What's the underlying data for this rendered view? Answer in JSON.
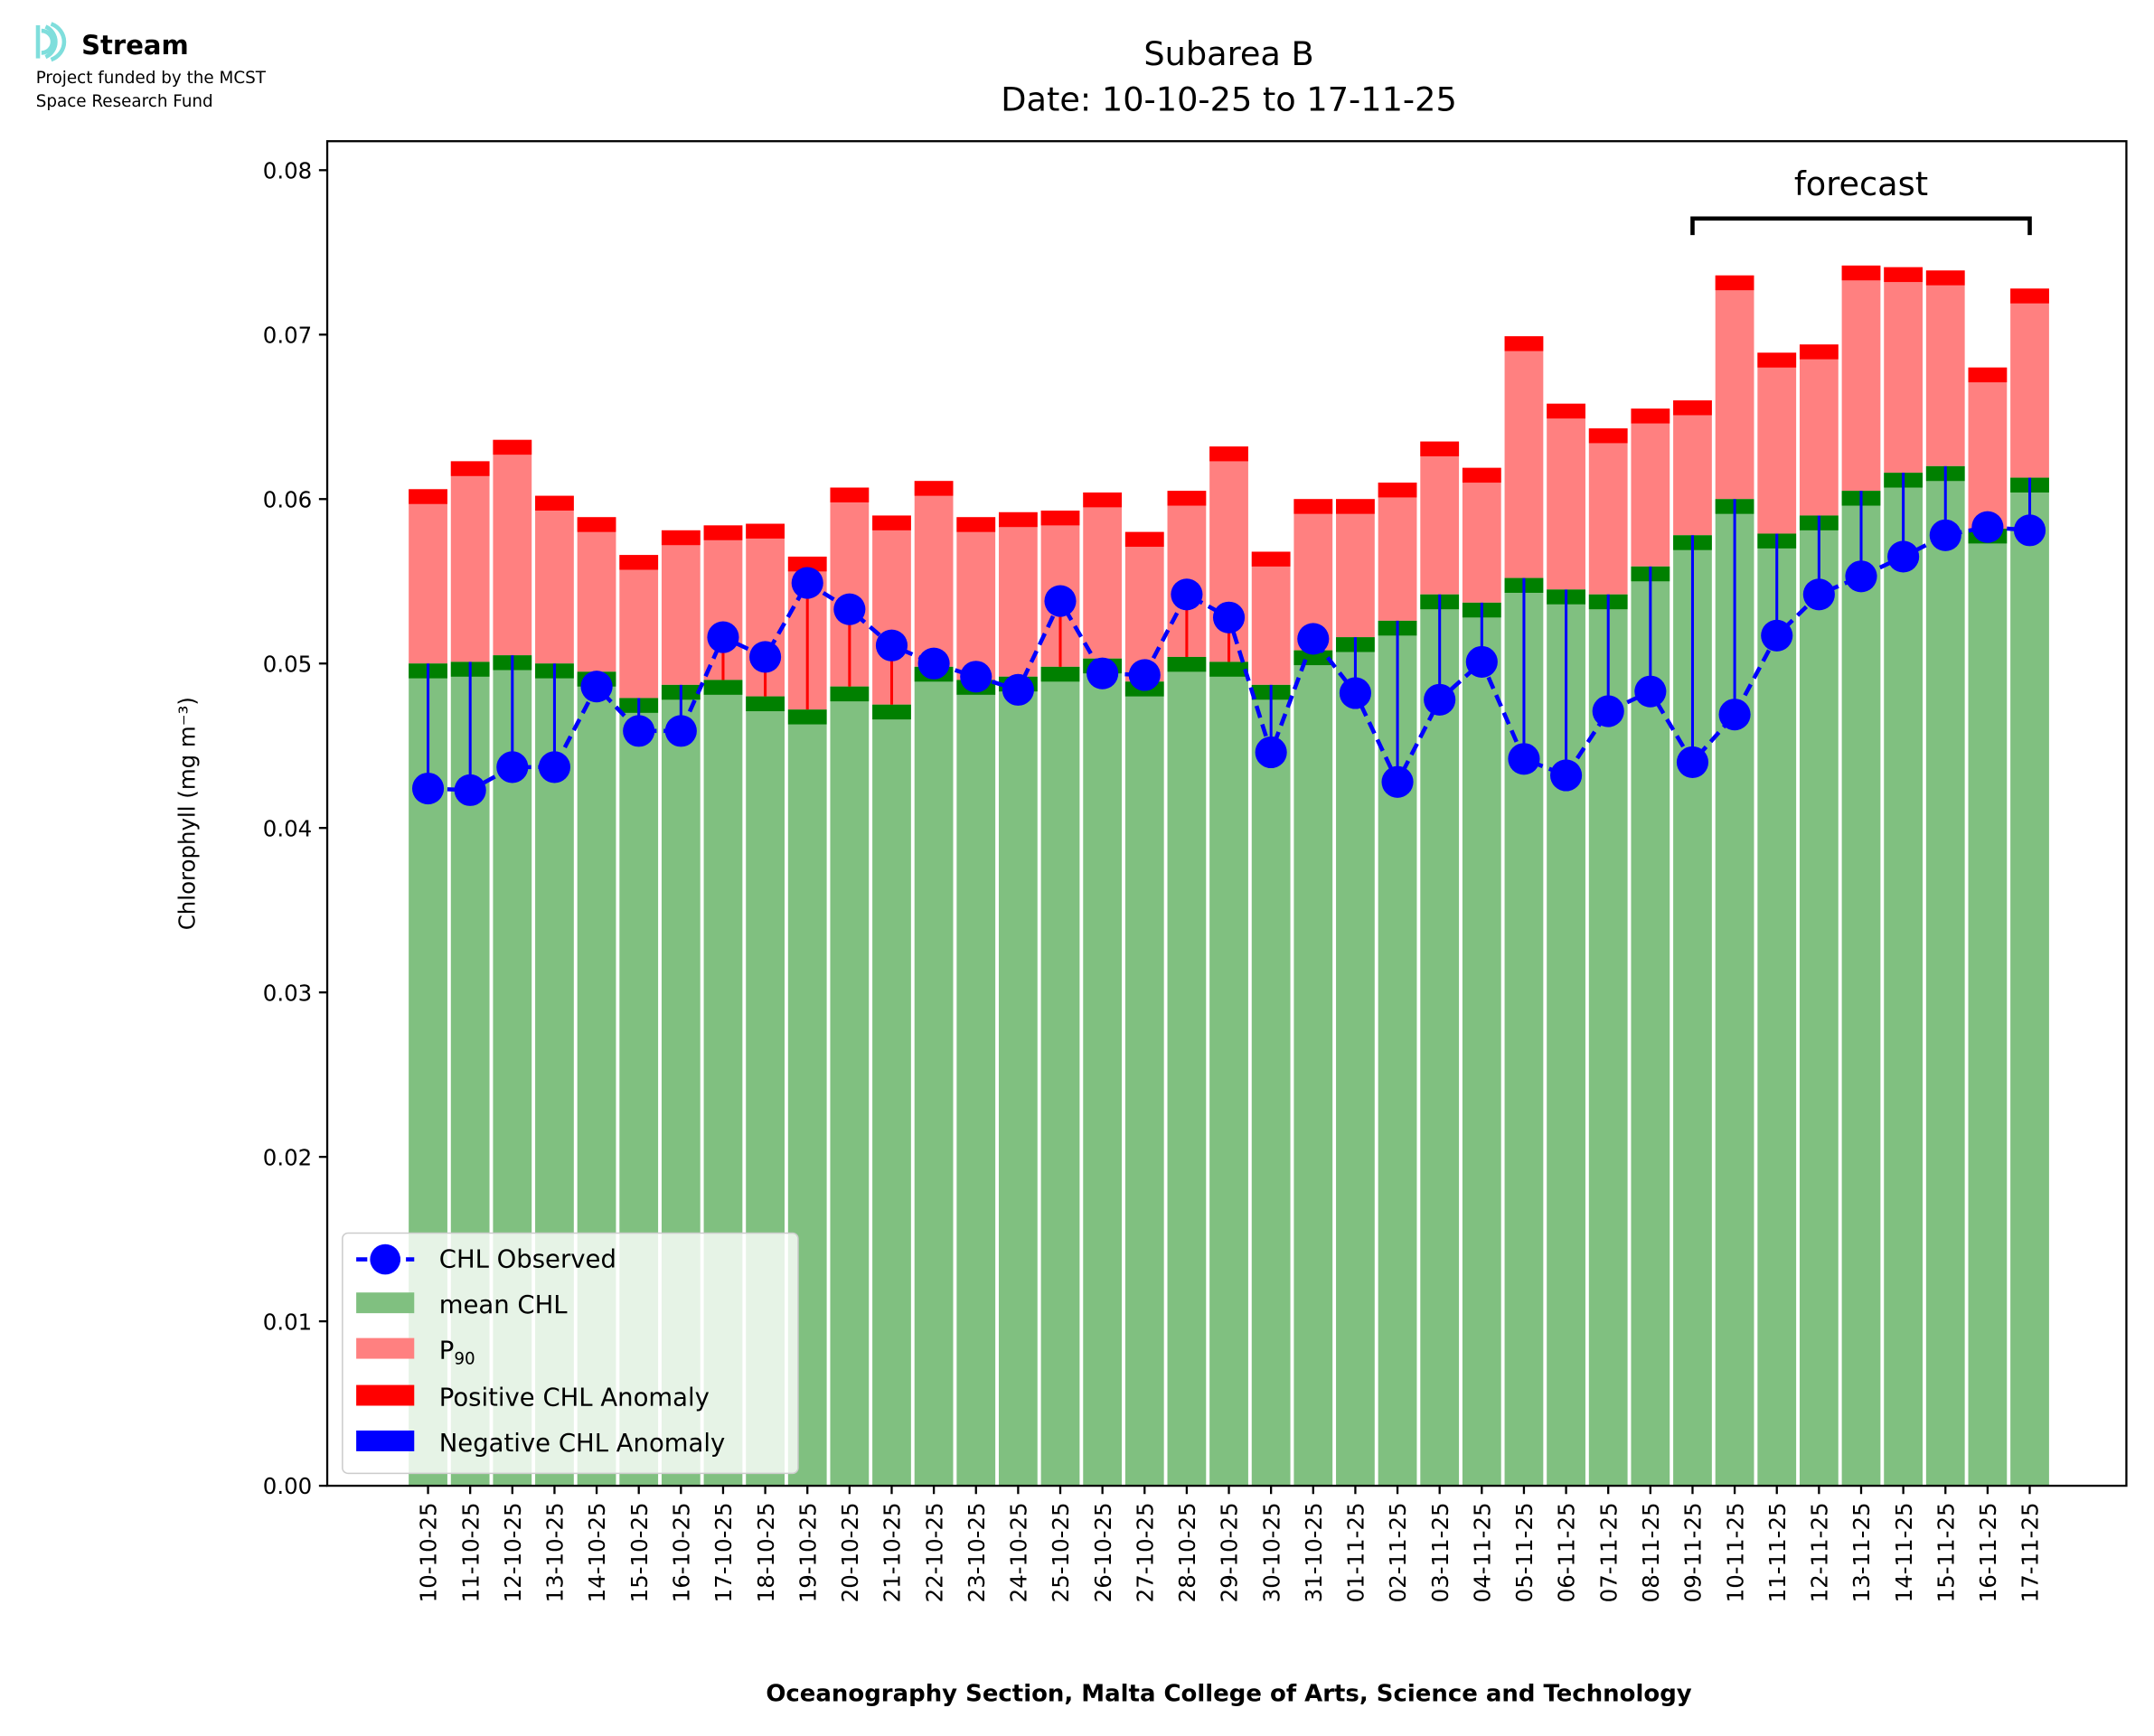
{
  "logo": {
    "name": "Stream",
    "line1": "Project funded by the MCST",
    "line2": "Space Research Fund"
  },
  "chart_data": {
    "type": "bar",
    "title": "Subarea B",
    "subtitle": "Date: 10-10-25 to 17-11-25",
    "xlabel": "Oceanography Section, Malta College of Arts, Science and Technology",
    "ylabel": "Chlorophyll (mg m⁻³)",
    "ylim": [
      0,
      0.08
    ],
    "yticks": [
      "0.00",
      "0.01",
      "0.02",
      "0.03",
      "0.04",
      "0.05",
      "0.06",
      "0.07",
      "0.08"
    ],
    "annotation": {
      "text": "forecast",
      "from": "09-11-25",
      "to": "17-11-25"
    },
    "legend": {
      "placement": "lower-left",
      "entries": [
        "CHL Observed",
        "mean CHL",
        "P90",
        "Positive CHL Anomaly",
        "Negative CHL Anomaly"
      ]
    },
    "colors": {
      "mean": "#80c080",
      "mean_band": "#008000",
      "p90": "#ff8080",
      "p90_band": "#ff0000",
      "observed": "#0000ff",
      "pos": "#ff0000",
      "neg": "#0000ff"
    },
    "categories": [
      "10-10-25",
      "11-10-25",
      "12-10-25",
      "13-10-25",
      "14-10-25",
      "15-10-25",
      "16-10-25",
      "17-10-25",
      "18-10-25",
      "19-10-25",
      "20-10-25",
      "21-10-25",
      "22-10-25",
      "23-10-25",
      "24-10-25",
      "25-10-25",
      "26-10-25",
      "27-10-25",
      "28-10-25",
      "29-10-25",
      "30-10-25",
      "31-10-25",
      "01-11-25",
      "02-11-25",
      "03-11-25",
      "04-11-25",
      "05-11-25",
      "06-11-25",
      "07-11-25",
      "08-11-25",
      "09-11-25",
      "10-11-25",
      "11-11-25",
      "12-11-25",
      "13-11-25",
      "14-11-25",
      "15-11-25",
      "16-11-25",
      "17-11-25"
    ],
    "series": [
      {
        "name": "mean CHL",
        "values": [
          0.05,
          0.0501,
          0.0505,
          0.05,
          0.0495,
          0.0479,
          0.0487,
          0.049,
          0.048,
          0.0472,
          0.0486,
          0.0475,
          0.0498,
          0.049,
          0.0492,
          0.0498,
          0.0503,
          0.0489,
          0.0504,
          0.0501,
          0.0487,
          0.0508,
          0.0516,
          0.0526,
          0.0542,
          0.0537,
          0.0552,
          0.0545,
          0.0542,
          0.0559,
          0.0578,
          0.06,
          0.0579,
          0.059,
          0.0605,
          0.0616,
          0.062,
          0.0582,
          0.0613
        ]
      },
      {
        "name": "P90",
        "values": [
          0.0606,
          0.0623,
          0.0636,
          0.0602,
          0.0589,
          0.0566,
          0.0581,
          0.0584,
          0.0585,
          0.0565,
          0.0607,
          0.059,
          0.0611,
          0.0589,
          0.0592,
          0.0593,
          0.0604,
          0.058,
          0.0605,
          0.0632,
          0.0568,
          0.06,
          0.06,
          0.061,
          0.0635,
          0.0619,
          0.0699,
          0.0658,
          0.0643,
          0.0655,
          0.066,
          0.0736,
          0.0689,
          0.0694,
          0.0742,
          0.0741,
          0.0739,
          0.068,
          0.0728
        ]
      },
      {
        "name": "CHL Observed",
        "values": [
          0.0424,
          0.0423,
          0.0437,
          0.0437,
          0.0486,
          0.0459,
          0.0459,
          0.0516,
          0.0504,
          0.0549,
          0.0533,
          0.0511,
          0.05,
          0.0492,
          0.0484,
          0.0538,
          0.0494,
          0.0493,
          0.0542,
          0.0528,
          0.0446,
          0.0515,
          0.0482,
          0.0428,
          0.0478,
          0.0501,
          0.0442,
          0.0432,
          0.0471,
          0.0483,
          0.044,
          0.0469,
          0.0517,
          0.0542,
          0.0553,
          0.0565,
          0.0578,
          0.0583,
          0.0581
        ]
      }
    ]
  }
}
